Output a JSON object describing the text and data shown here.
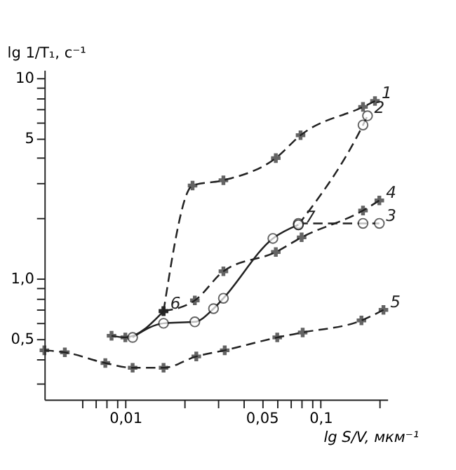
{
  "chart_data": {
    "type": "line",
    "xlabel": "lg S/V, мкм⁻¹",
    "ylabel": "lg 1/T₁, с⁻¹",
    "log": "xy",
    "grid": false,
    "xlim": [
      0.00385,
      0.22
    ],
    "ylim": [
      0.25,
      11
    ],
    "xticks": [
      {
        "value": 0.006,
        "label": null
      },
      {
        "value": 0.007,
        "label": null
      },
      {
        "value": 0.008,
        "label": null
      },
      {
        "value": 0.009,
        "label": null
      },
      {
        "value": 0.01,
        "label": "0,01"
      },
      {
        "value": 0.02,
        "label": null
      },
      {
        "value": 0.03,
        "label": null
      },
      {
        "value": 0.04,
        "label": null
      },
      {
        "value": 0.05,
        "label": "0,05"
      },
      {
        "value": 0.06,
        "label": null
      },
      {
        "value": 0.07,
        "label": null
      },
      {
        "value": 0.08,
        "label": null
      },
      {
        "value": 0.09,
        "label": null
      },
      {
        "value": 0.1,
        "label": "0,1"
      },
      {
        "value": 0.2,
        "label": null
      }
    ],
    "yticks": [
      {
        "value": 0.3,
        "label": null
      },
      {
        "value": 0.4,
        "label": null
      },
      {
        "value": 0.5,
        "label": "0,5"
      },
      {
        "value": 0.6,
        "label": null
      },
      {
        "value": 0.7,
        "label": null
      },
      {
        "value": 0.8,
        "label": null
      },
      {
        "value": 0.9,
        "label": null
      },
      {
        "value": 1,
        "label": "1,0"
      },
      {
        "value": 2,
        "label": null
      },
      {
        "value": 3,
        "label": null
      },
      {
        "value": 4,
        "label": null
      },
      5,
      {
        "value": 6,
        "label": null
      },
      {
        "value": 7,
        "label": null
      },
      {
        "value": 8,
        "label": null
      },
      {
        "value": 9,
        "label": null
      },
      10
    ],
    "series": [
      {
        "name": "1",
        "color": "#222222",
        "line_style": "dashed",
        "marker": "cross",
        "x": [
          0.0157,
          0.0221,
          0.0318,
          0.059,
          0.079,
          0.165,
          0.19
        ],
        "values": [
          0.69,
          2.92,
          3.1,
          4.0,
          5.2,
          7.2,
          7.7
        ]
      },
      {
        "name": "2",
        "color": "#222222",
        "line_style": "dashed",
        "marker": "circle",
        "x": [
          0.077,
          0.165,
          0.174
        ],
        "values": [
          1.86,
          5.85,
          6.5
        ]
      },
      {
        "name": "3",
        "color": "#222222",
        "line_style": "dashed",
        "marker": "circle",
        "x": [
          0.077,
          0.165,
          0.2
        ],
        "values": [
          1.89,
          1.89,
          1.89
        ]
      },
      {
        "name": "4",
        "color": "#222222",
        "line_style": "dashed",
        "marker": "cross",
        "x": [
          0.0157,
          0.0227,
          0.0318,
          0.059,
          0.08,
          0.165,
          0.2
        ],
        "values": [
          0.69,
          0.78,
          1.09,
          1.36,
          1.61,
          2.19,
          2.46
        ]
      },
      {
        "name": "5",
        "color": "#222222",
        "line_style": "dashed",
        "marker": "cross",
        "x": [
          0.00385,
          0.0049,
          0.0079,
          0.0109,
          0.0157,
          0.0231,
          0.0323,
          0.06,
          0.081,
          0.162,
          0.21
        ],
        "values": [
          0.44,
          0.43,
          0.38,
          0.36,
          0.36,
          0.41,
          0.44,
          0.51,
          0.54,
          0.62,
          0.7
        ]
      },
      {
        "name": "6",
        "color": "#222222",
        "line_style": "solid",
        "marker": "cross",
        "x": [
          0.0085,
          0.01,
          0.0157
        ],
        "values": [
          0.52,
          0.51,
          0.69
        ]
      },
      {
        "name": "7",
        "color": "#222222",
        "line_style": "solid",
        "marker": "circle",
        "x": [
          0.0109,
          0.0157,
          0.0227,
          0.0283,
          0.0318,
          0.057,
          0.077
        ],
        "values": [
          0.51,
          0.6,
          0.61,
          0.71,
          0.8,
          1.59,
          1.86
        ]
      }
    ]
  }
}
